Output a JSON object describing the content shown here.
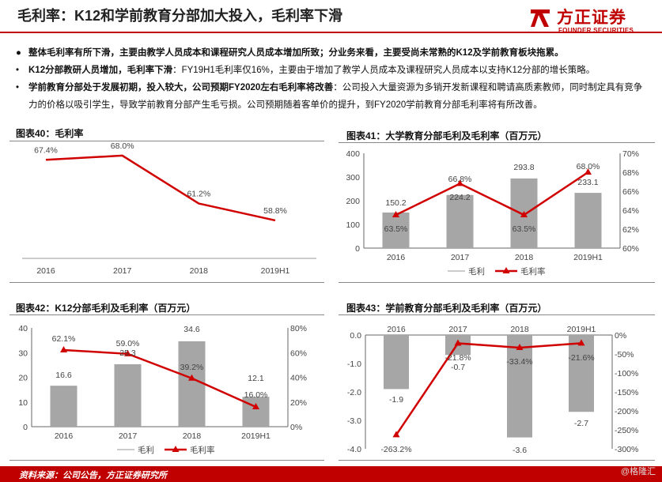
{
  "page": {
    "title": "毛利率：K12和学前教育分部加大投入，毛利率下滑",
    "logo_cn": "方正证券",
    "logo_en": "FOUNDER SECURITIES",
    "footer": "资料来源：公司公告，方正证券研究所",
    "watermark": "@格隆汇"
  },
  "bullets": [
    {
      "mark": "●",
      "bold": "整体毛利率有所下滑，主要由教学人员成本和课程研究人员成本增加所致；分业务来看，主要受尚未常熟的K12及学前教育板块拖累。",
      "text": ""
    },
    {
      "mark": "•",
      "bold": "K12分部教研人员增加，毛利率下滑",
      "text": "：FY19H1毛利率仅16%，主要由于增加了教学人员成本及课程研究人员成本以支持K12分部的增长策略。"
    },
    {
      "mark": "•",
      "bold": "学前教育分部处于发展初期，投入较大，公司预期FY2020左右毛利率将改善",
      "text": "：公司投入大量资源为多销开发新课程和聘请高质素教师，同时制定具有竞争力的价格以吸引学生，导致学前教育分部产生毛亏损。公司预期随着客单价的提升，到FY2020学前教育分部毛利率将有所改善。"
    }
  ],
  "chart_data": [
    {
      "title": "图表40：毛利率",
      "type": "line",
      "categories": [
        "2016",
        "2017",
        "2018",
        "2019H1"
      ],
      "series": [
        {
          "values": [
            67.4,
            68.0,
            61.2,
            58.8
          ],
          "labels": [
            "67.4%",
            "68.0%",
            "61.2%",
            "58.8%"
          ]
        }
      ],
      "color": "#e00000"
    },
    {
      "title": "图表41：大学教育分部毛利及毛利率（百万元）",
      "type": "bar",
      "categories": [
        "2016",
        "2017",
        "2018",
        "2019H1"
      ],
      "series": [
        {
          "name": "毛利",
          "type": "bar",
          "values": [
            150.2,
            224.2,
            293.8,
            233.1
          ],
          "labels": [
            "150.2",
            "224.2",
            "293.8",
            "233.1"
          ]
        },
        {
          "name": "毛利率",
          "type": "line",
          "values": [
            63.5,
            66.8,
            63.5,
            68.0
          ],
          "labels": [
            "63.5%",
            "66.8%",
            "63.5%",
            "68.0%"
          ]
        }
      ],
      "yticks": [
        "0",
        "100",
        "200",
        "300",
        "400"
      ],
      "y2ticks": [
        "60%",
        "62%",
        "64%",
        "66%",
        "68%",
        "70%"
      ],
      "ylim": [
        0,
        400
      ],
      "y2lim": [
        60,
        70
      ],
      "legend": "bottom"
    },
    {
      "title": "图表42：K12分部毛利及毛利率（百万元）",
      "type": "bar",
      "categories": [
        "2016",
        "2017",
        "2018",
        "2019H1"
      ],
      "series": [
        {
          "name": "毛利",
          "type": "bar",
          "values": [
            16.6,
            25.3,
            34.6,
            12.1
          ],
          "labels": [
            "16.6",
            "25.3",
            "34.6",
            "12.1"
          ]
        },
        {
          "name": "毛利率",
          "type": "line",
          "values": [
            62.1,
            59.0,
            39.2,
            16.0
          ],
          "labels": [
            "62.1%",
            "59.0%",
            "39.2%",
            "16.0%"
          ]
        }
      ],
      "yticks": [
        "0",
        "10",
        "20",
        "30",
        "40"
      ],
      "y2ticks": [
        "0%",
        "20%",
        "40%",
        "60%",
        "80%"
      ],
      "ylim": [
        0,
        40
      ],
      "y2lim": [
        0,
        80
      ],
      "legend": "bottom"
    },
    {
      "title": "图表43：学前教育分部毛利及毛利率（百万元）",
      "type": "bar",
      "categories": [
        "2016",
        "2017",
        "2018",
        "2019H1"
      ],
      "series": [
        {
          "name": "毛利",
          "type": "bar",
          "values": [
            -1.9,
            -0.7,
            -3.6,
            -2.7
          ],
          "labels": [
            "-1.9",
            "-0.7",
            "-3.6",
            "-2.7"
          ]
        },
        {
          "name": "毛利率",
          "type": "line",
          "values": [
            -263.2,
            -21.8,
            -33.4,
            -21.6
          ],
          "labels": [
            "-263.2%",
            "-21.8%",
            "-33.4%",
            "-21.6%"
          ]
        }
      ],
      "yticks": [
        "0.0",
        "-1.0",
        "-2.0",
        "-3.0",
        "-4.0"
      ],
      "y2ticks": [
        "0%",
        "-50%",
        "-100%",
        "-150%",
        "-200%",
        "-250%",
        "-300%"
      ],
      "ylim": [
        -4,
        0
      ],
      "y2lim": [
        -300,
        0
      ],
      "legend": "none"
    }
  ]
}
